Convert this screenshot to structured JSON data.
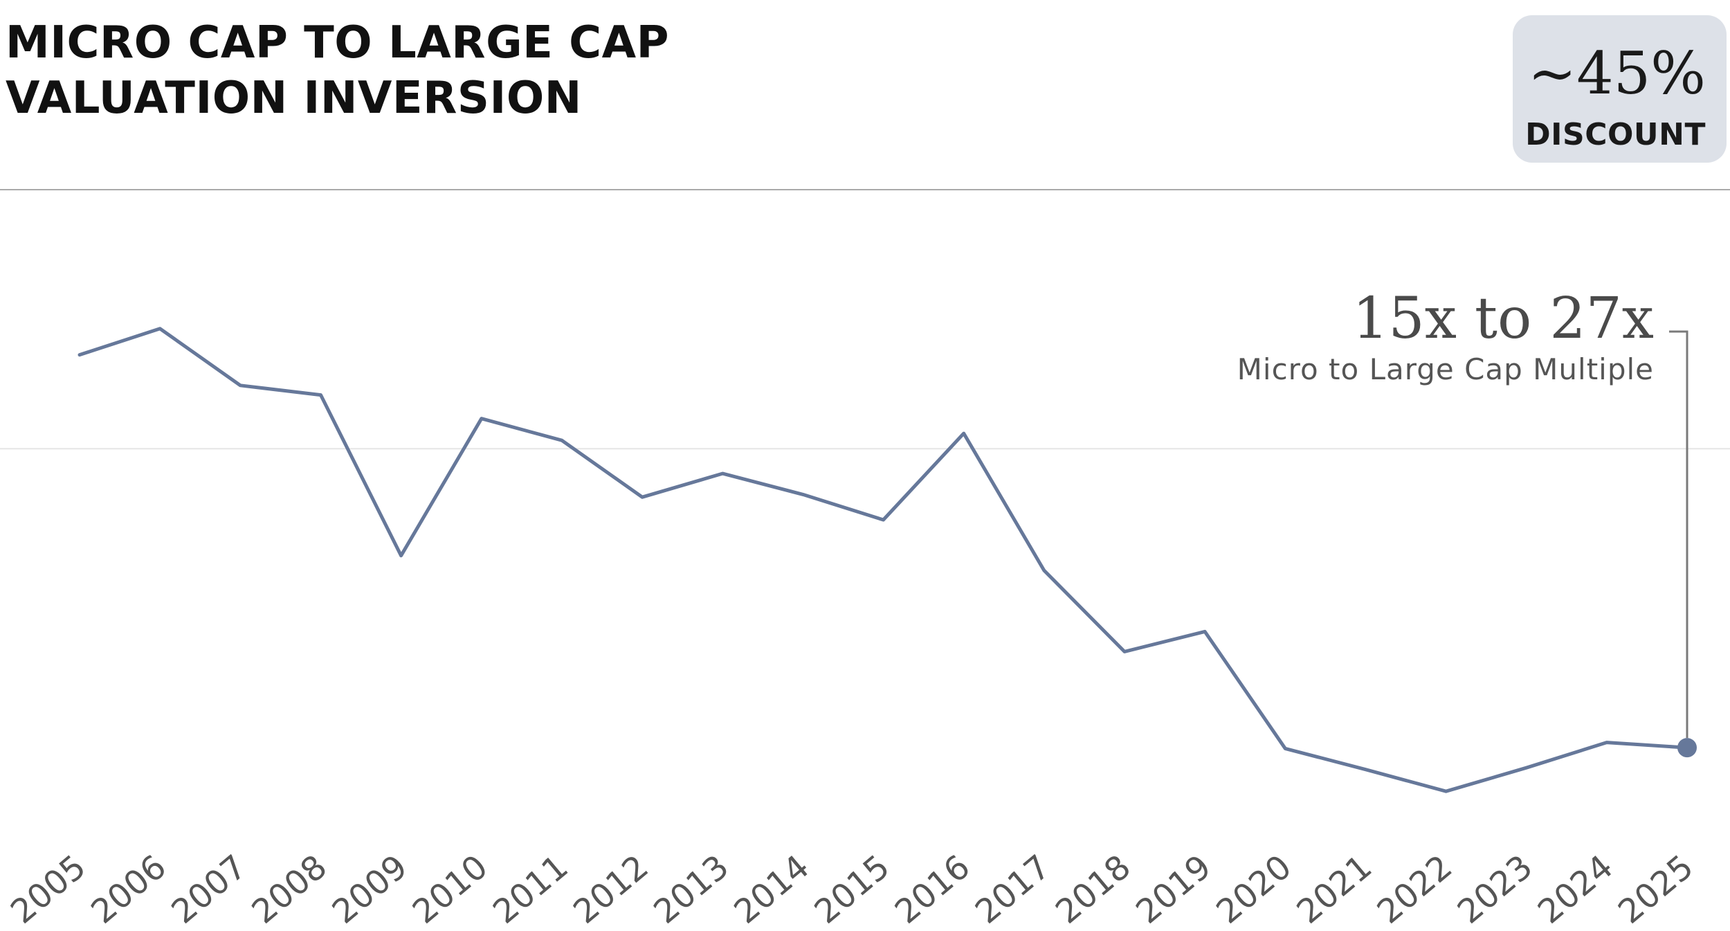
{
  "header": {
    "title_line1": "MICRO CAP TO LARGE CAP",
    "title_line2": "VALUATION INVERSION"
  },
  "badge": {
    "value": "~45%",
    "label": "DISCOUNT"
  },
  "callout": {
    "value": "15x to 27x",
    "label": "Micro to Large Cap Multiple"
  },
  "colors": {
    "line": "#66789a",
    "badge_bg": "#dde1e8",
    "gridline": "#e6e6e6",
    "leader": "#7a7a7a"
  },
  "chart_data": {
    "type": "line",
    "title": "MICRO CAP TO LARGE CAP VALUATION INVERSION",
    "xlabel": "",
    "ylabel": "",
    "grid": "single horizontal gridline",
    "x": [
      "2005",
      "2006",
      "2007",
      "2008",
      "2009",
      "2010",
      "2011",
      "2012",
      "2013",
      "2014",
      "2015",
      "2016",
      "2017",
      "2018",
      "2019",
      "2020",
      "2021",
      "2022",
      "2023",
      "2024",
      "2025"
    ],
    "series": [
      {
        "values": [
          0.76,
          0.79,
          0.725,
          0.714,
          0.53,
          0.687,
          0.662,
          0.597,
          0.624,
          0.6,
          0.571,
          0.67,
          0.513,
          0.42,
          0.443,
          0.309,
          0.285,
          0.26,
          0.287,
          0.316,
          0.31
        ]
      }
    ],
    "ylim": [
      0.1,
      0.95
    ],
    "gridline_y": 0.6525,
    "highlight_point": {
      "x": "2025",
      "value": 0.31
    }
  }
}
